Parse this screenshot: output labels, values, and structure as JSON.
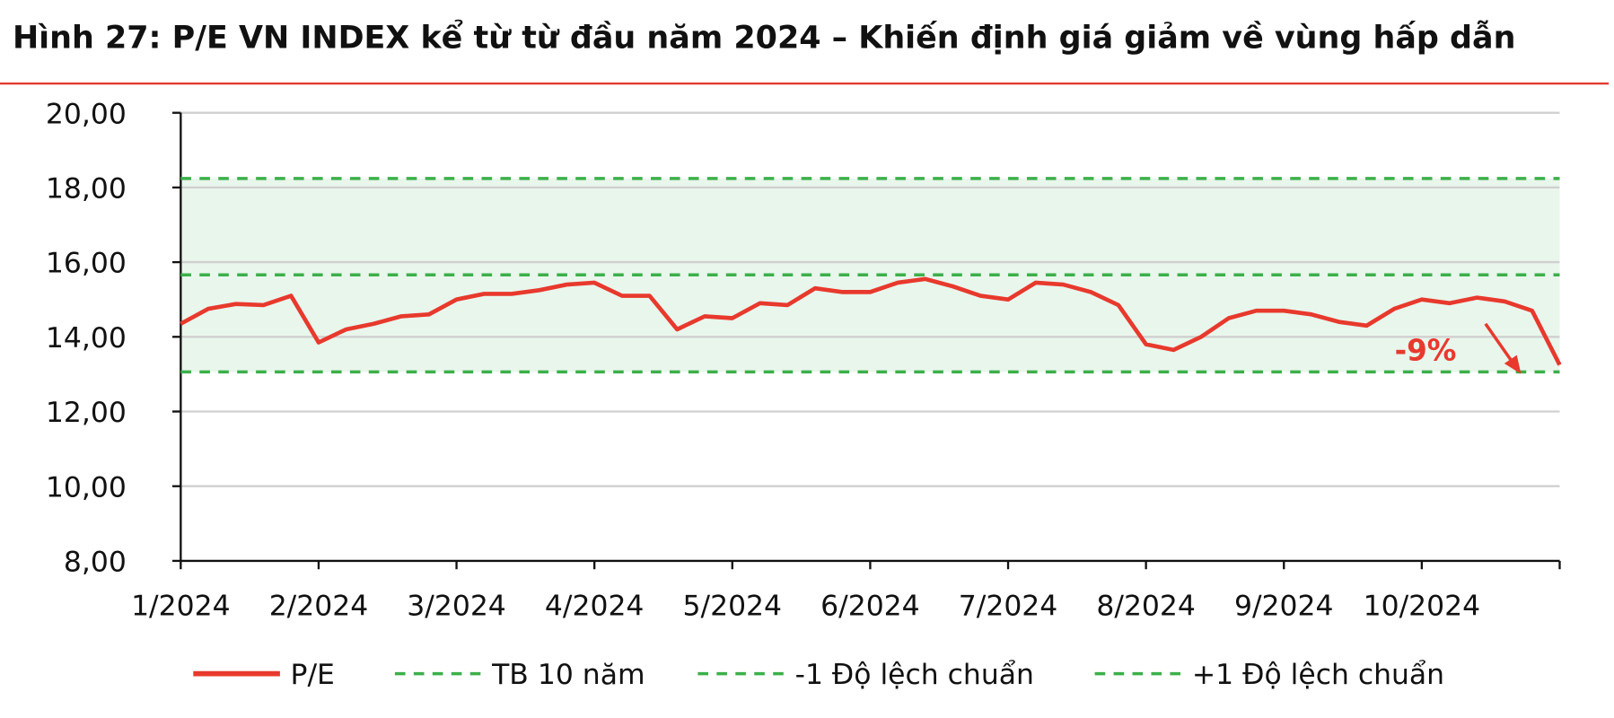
{
  "chart_data": {
    "type": "line",
    "title": "Hình 27: P/E VN INDEX kể từ từ đầu năm 2024 – Khiến định giá giảm về vùng hấp dẫn",
    "categories": [
      "1/2024",
      null,
      null,
      null,
      null,
      "2/2024",
      null,
      null,
      null,
      null,
      "3/2024",
      null,
      null,
      null,
      null,
      "4/2024",
      null,
      null,
      null,
      null,
      "5/2024",
      null,
      null,
      null,
      null,
      "6/2024",
      null,
      null,
      null,
      null,
      "7/2024",
      null,
      null,
      null,
      null,
      "8/2024",
      null,
      null,
      null,
      null,
      "9/2024",
      null,
      null,
      null,
      null,
      "10/2024",
      null,
      null,
      null,
      null,
      null
    ],
    "series": [
      {
        "name": "P/E",
        "color": "#e8392d",
        "values": [
          14.35,
          14.75,
          14.88,
          14.85,
          15.1,
          13.85,
          14.2,
          14.35,
          14.55,
          14.6,
          15.0,
          15.15,
          15.15,
          15.25,
          15.4,
          15.45,
          15.1,
          15.1,
          14.2,
          14.55,
          14.5,
          14.9,
          14.85,
          15.3,
          15.2,
          15.2,
          15.45,
          15.55,
          15.35,
          15.1,
          15.0,
          15.45,
          15.4,
          15.2,
          14.85,
          13.8,
          13.65,
          14.0,
          14.5,
          14.7,
          14.7,
          14.6,
          14.4,
          14.3,
          14.75,
          15.0,
          14.9,
          15.05,
          14.95,
          14.7,
          13.25
        ]
      },
      {
        "name": "TB 10 năm",
        "color": "#3cb04a",
        "dashed": true,
        "values": [
          15.66,
          15.66,
          15.66,
          15.66,
          15.66,
          15.66,
          15.66,
          15.66,
          15.66,
          15.66,
          15.66,
          15.66,
          15.66,
          15.66,
          15.66,
          15.66,
          15.66,
          15.66,
          15.66,
          15.66,
          15.66,
          15.66,
          15.66,
          15.66,
          15.66,
          15.66,
          15.66,
          15.66,
          15.66,
          15.66,
          15.66,
          15.66,
          15.66,
          15.66,
          15.66,
          15.66,
          15.66,
          15.66,
          15.66,
          15.66,
          15.66,
          15.66,
          15.66,
          15.66,
          15.66,
          15.66,
          15.66,
          15.66,
          15.66,
          15.66,
          15.66
        ]
      },
      {
        "name": "-1 Độ lệch chuẩn",
        "color": "#3cb04a",
        "dashed": true,
        "values": [
          13.06,
          13.06,
          13.06,
          13.06,
          13.06,
          13.06,
          13.06,
          13.06,
          13.06,
          13.06,
          13.06,
          13.06,
          13.06,
          13.06,
          13.06,
          13.06,
          13.06,
          13.06,
          13.06,
          13.06,
          13.06,
          13.06,
          13.06,
          13.06,
          13.06,
          13.06,
          13.06,
          13.06,
          13.06,
          13.06,
          13.06,
          13.06,
          13.06,
          13.06,
          13.06,
          13.06,
          13.06,
          13.06,
          13.06,
          13.06,
          13.06,
          13.06,
          13.06,
          13.06,
          13.06,
          13.06,
          13.06,
          13.06,
          13.06,
          13.06,
          13.06
        ]
      },
      {
        "name": "+1 Độ lệch chuẩn",
        "color": "#3cb04a",
        "dashed": true,
        "values": [
          18.24,
          18.24,
          18.24,
          18.24,
          18.24,
          18.24,
          18.24,
          18.24,
          18.24,
          18.24,
          18.24,
          18.24,
          18.24,
          18.24,
          18.24,
          18.24,
          18.24,
          18.24,
          18.24,
          18.24,
          18.24,
          18.24,
          18.24,
          18.24,
          18.24,
          18.24,
          18.24,
          18.24,
          18.24,
          18.24,
          18.24,
          18.24,
          18.24,
          18.24,
          18.24,
          18.24,
          18.24,
          18.24,
          18.24,
          18.24,
          18.24,
          18.24,
          18.24,
          18.24,
          18.24,
          18.24,
          18.24,
          18.24,
          18.24,
          18.24,
          18.24
        ]
      }
    ],
    "band_color": "#e9f6ec",
    "ylim": [
      8,
      20
    ],
    "yticks": [
      {
        "value": 8,
        "label": "8,00"
      },
      {
        "value": 10,
        "label": "10,00"
      },
      {
        "value": 12,
        "label": "12,00"
      },
      {
        "value": 14,
        "label": "14,00"
      },
      {
        "value": 16,
        "label": "16,00"
      },
      {
        "value": 18,
        "label": "18,00"
      },
      {
        "value": 20,
        "label": "20,00"
      }
    ],
    "grid": true,
    "annotation": "-9%",
    "legend": "bottom"
  }
}
